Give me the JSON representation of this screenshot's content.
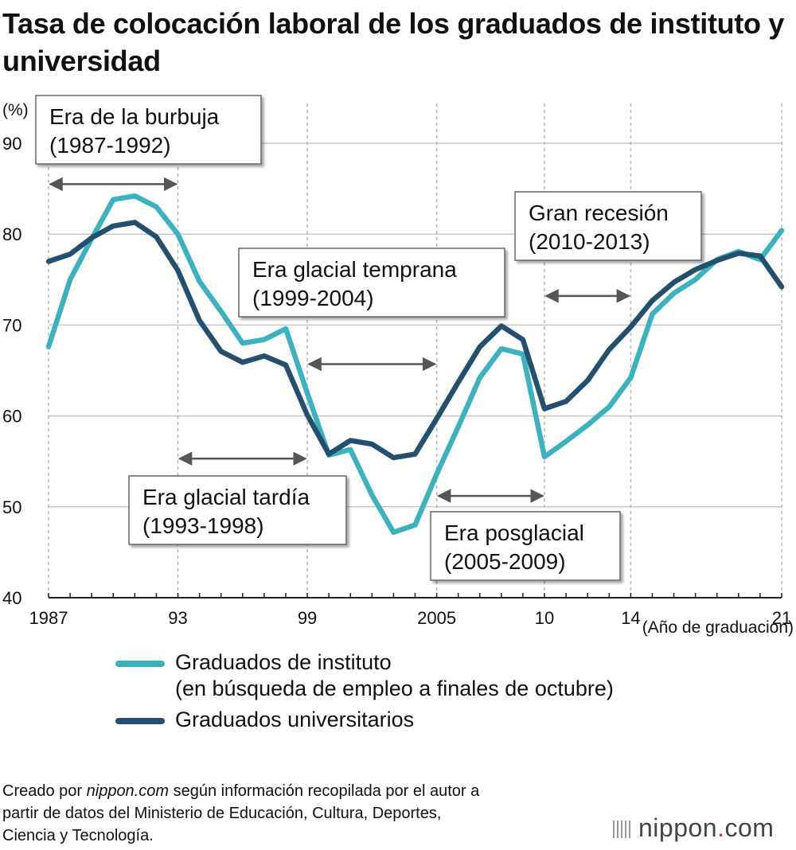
{
  "title": "Tasa de colocación laboral de los graduados de instituto y universidad",
  "chart_data": {
    "type": "line",
    "ylabel": "(%)",
    "xlabel": "(Año de graduación)",
    "ylim": [
      40,
      90
    ],
    "yticks": [
      40,
      50,
      60,
      70,
      80,
      90
    ],
    "xlim": [
      1987,
      2021
    ],
    "xticks": [
      {
        "year": 1987,
        "label": "1987"
      },
      {
        "year": 1993,
        "label": "93"
      },
      {
        "year": 1999,
        "label": "99"
      },
      {
        "year": 2005,
        "label": "2005"
      },
      {
        "year": 2010,
        "label": "10"
      },
      {
        "year": 2014,
        "label": "14"
      },
      {
        "year": 2021,
        "label": "21"
      }
    ],
    "x": [
      1987,
      1988,
      1989,
      1990,
      1991,
      1992,
      1993,
      1994,
      1995,
      1996,
      1997,
      1998,
      1999,
      2000,
      2001,
      2002,
      2003,
      2004,
      2005,
      2006,
      2007,
      2008,
      2009,
      2010,
      2011,
      2012,
      2013,
      2014,
      2015,
      2016,
      2017,
      2018,
      2019,
      2020,
      2021
    ],
    "series": [
      {
        "name": "Graduados de instituto",
        "name_note": "(en búsqueda de empleo a finales de octubre)",
        "color": "#3ab3bf",
        "values": [
          67.6,
          75.0,
          79.5,
          83.8,
          84.2,
          83.0,
          80.0,
          74.8,
          71.5,
          68.0,
          68.4,
          69.6,
          62.5,
          55.7,
          56.3,
          51.3,
          47.2,
          48.0,
          53.6,
          58.8,
          64.2,
          67.4,
          66.8,
          55.5,
          57.2,
          59.0,
          61.0,
          64.2,
          71.2,
          73.5,
          75.0,
          77.2,
          78.1,
          77.2,
          80.4
        ]
      },
      {
        "name": "Graduados universitarios",
        "color": "#244f6e",
        "values": [
          77.0,
          77.8,
          79.6,
          80.9,
          81.3,
          79.7,
          76.0,
          70.5,
          67.1,
          65.9,
          66.6,
          65.6,
          60.1,
          55.8,
          57.3,
          56.9,
          55.4,
          55.8,
          59.7,
          63.7,
          67.6,
          69.9,
          68.4,
          60.8,
          61.6,
          63.9,
          67.3,
          69.8,
          72.7,
          74.7,
          76.1,
          77.1,
          77.9,
          77.6,
          74.2
        ]
      }
    ],
    "grid": {
      "vertical": "dashed",
      "horizontal": "solid"
    },
    "annotations": [
      {
        "id": "burbuja",
        "line1": "Era de la burbuja",
        "line2": "(1987-1992)",
        "from": 1987,
        "to": 1993,
        "level": 85.5
      },
      {
        "id": "tardia",
        "line1": "Era glacial tardía",
        "line2": "(1993-1998)",
        "from": 1993,
        "to": 1999,
        "level": 55.3
      },
      {
        "id": "temprana",
        "line1": "Era glacial temprana",
        "line2": "(1999-2004)",
        "from": 1999,
        "to": 2005,
        "level": 65.7
      },
      {
        "id": "posglacial",
        "line1": "Era posglacial",
        "line2": "(2005-2009)",
        "from": 2005,
        "to": 2010,
        "level": 51.2
      },
      {
        "id": "recesion",
        "line1": "Gran recesión",
        "line2": "(2010-2013)",
        "from": 2010,
        "to": 2014,
        "level": 73.2
      }
    ]
  },
  "legend": {
    "high_school": {
      "label": "Graduados de instituto",
      "note": "(en búsqueda de empleo a finales de octubre)"
    },
    "university": {
      "label": "Graduados universitarios"
    }
  },
  "source": {
    "prefix": "Creado por ",
    "brand": "nippon.com",
    "line1_rest": " según información recopilada por el autor a",
    "line2": "partir de datos del Ministerio de Educación, Cultura, Deportes,",
    "line3": "Ciencia y Tecnología."
  },
  "logo": {
    "name": "nippon",
    "dot": ".",
    "tld": "com"
  }
}
